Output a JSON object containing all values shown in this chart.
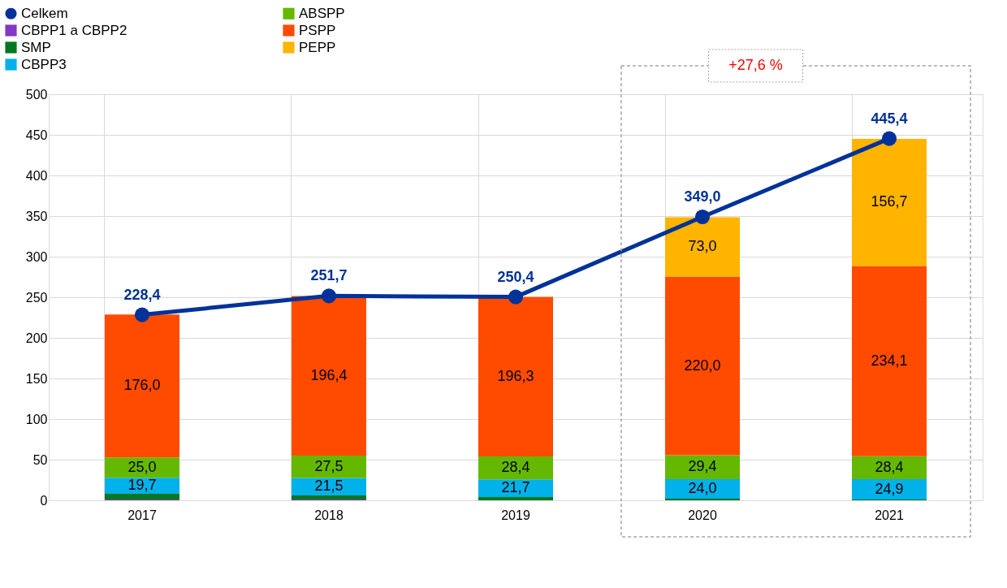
{
  "chart_data": {
    "type": "bar",
    "stacked": true,
    "categories": [
      "2017",
      "2018",
      "2019",
      "2020",
      "2021"
    ],
    "series": [
      {
        "name": "Celkem",
        "type": "line",
        "color": "#003299",
        "marker": "circle",
        "values": [
          228.4,
          251.7,
          250.4,
          349.0,
          445.4
        ],
        "value_labels": [
          "228,4",
          "251,7",
          "250,4",
          "349,0",
          "445,4"
        ]
      },
      {
        "name": "CBPP1 a CBPP2",
        "color": "#8139c6",
        "values": [
          1,
          1,
          null,
          null,
          null
        ],
        "value_labels": [
          null,
          null,
          null,
          null,
          null
        ]
      },
      {
        "name": "SMP",
        "color": "#00781e",
        "values": [
          7,
          5,
          4,
          2,
          1
        ],
        "value_labels": [
          null,
          null,
          null,
          null,
          null
        ]
      },
      {
        "name": "CBPP3",
        "color": "#00b1ea",
        "values": [
          19.7,
          21.5,
          21.7,
          24.0,
          24.9
        ],
        "value_labels": [
          "19,7",
          "21,5",
          "21,7",
          "24,0",
          "24,9"
        ]
      },
      {
        "name": "ABSPP",
        "color": "#65b800",
        "values": [
          25.0,
          27.5,
          28.4,
          29.4,
          28.4
        ],
        "value_labels": [
          "25,0",
          "27,5",
          "28,4",
          "29,4",
          "28,4"
        ]
      },
      {
        "name": "PSPP",
        "color": "#ff4b00",
        "values": [
          176.0,
          196.4,
          196.3,
          220.0,
          234.1
        ],
        "value_labels": [
          "176,0",
          "196,4",
          "196,3",
          "220,0",
          "234,1"
        ]
      },
      {
        "name": "PEPP",
        "color": "#ffb400",
        "values": [
          null,
          null,
          null,
          73.0,
          156.7
        ],
        "value_labels": [
          null,
          null,
          null,
          "73,0",
          "156,7"
        ]
      }
    ],
    "ylim": [
      0,
      500
    ],
    "yticks": [
      0,
      50,
      100,
      150,
      200,
      250,
      300,
      350,
      400,
      450,
      500
    ],
    "grid": true,
    "legend": "top left",
    "annotations": [
      "+27,6 %"
    ]
  }
}
